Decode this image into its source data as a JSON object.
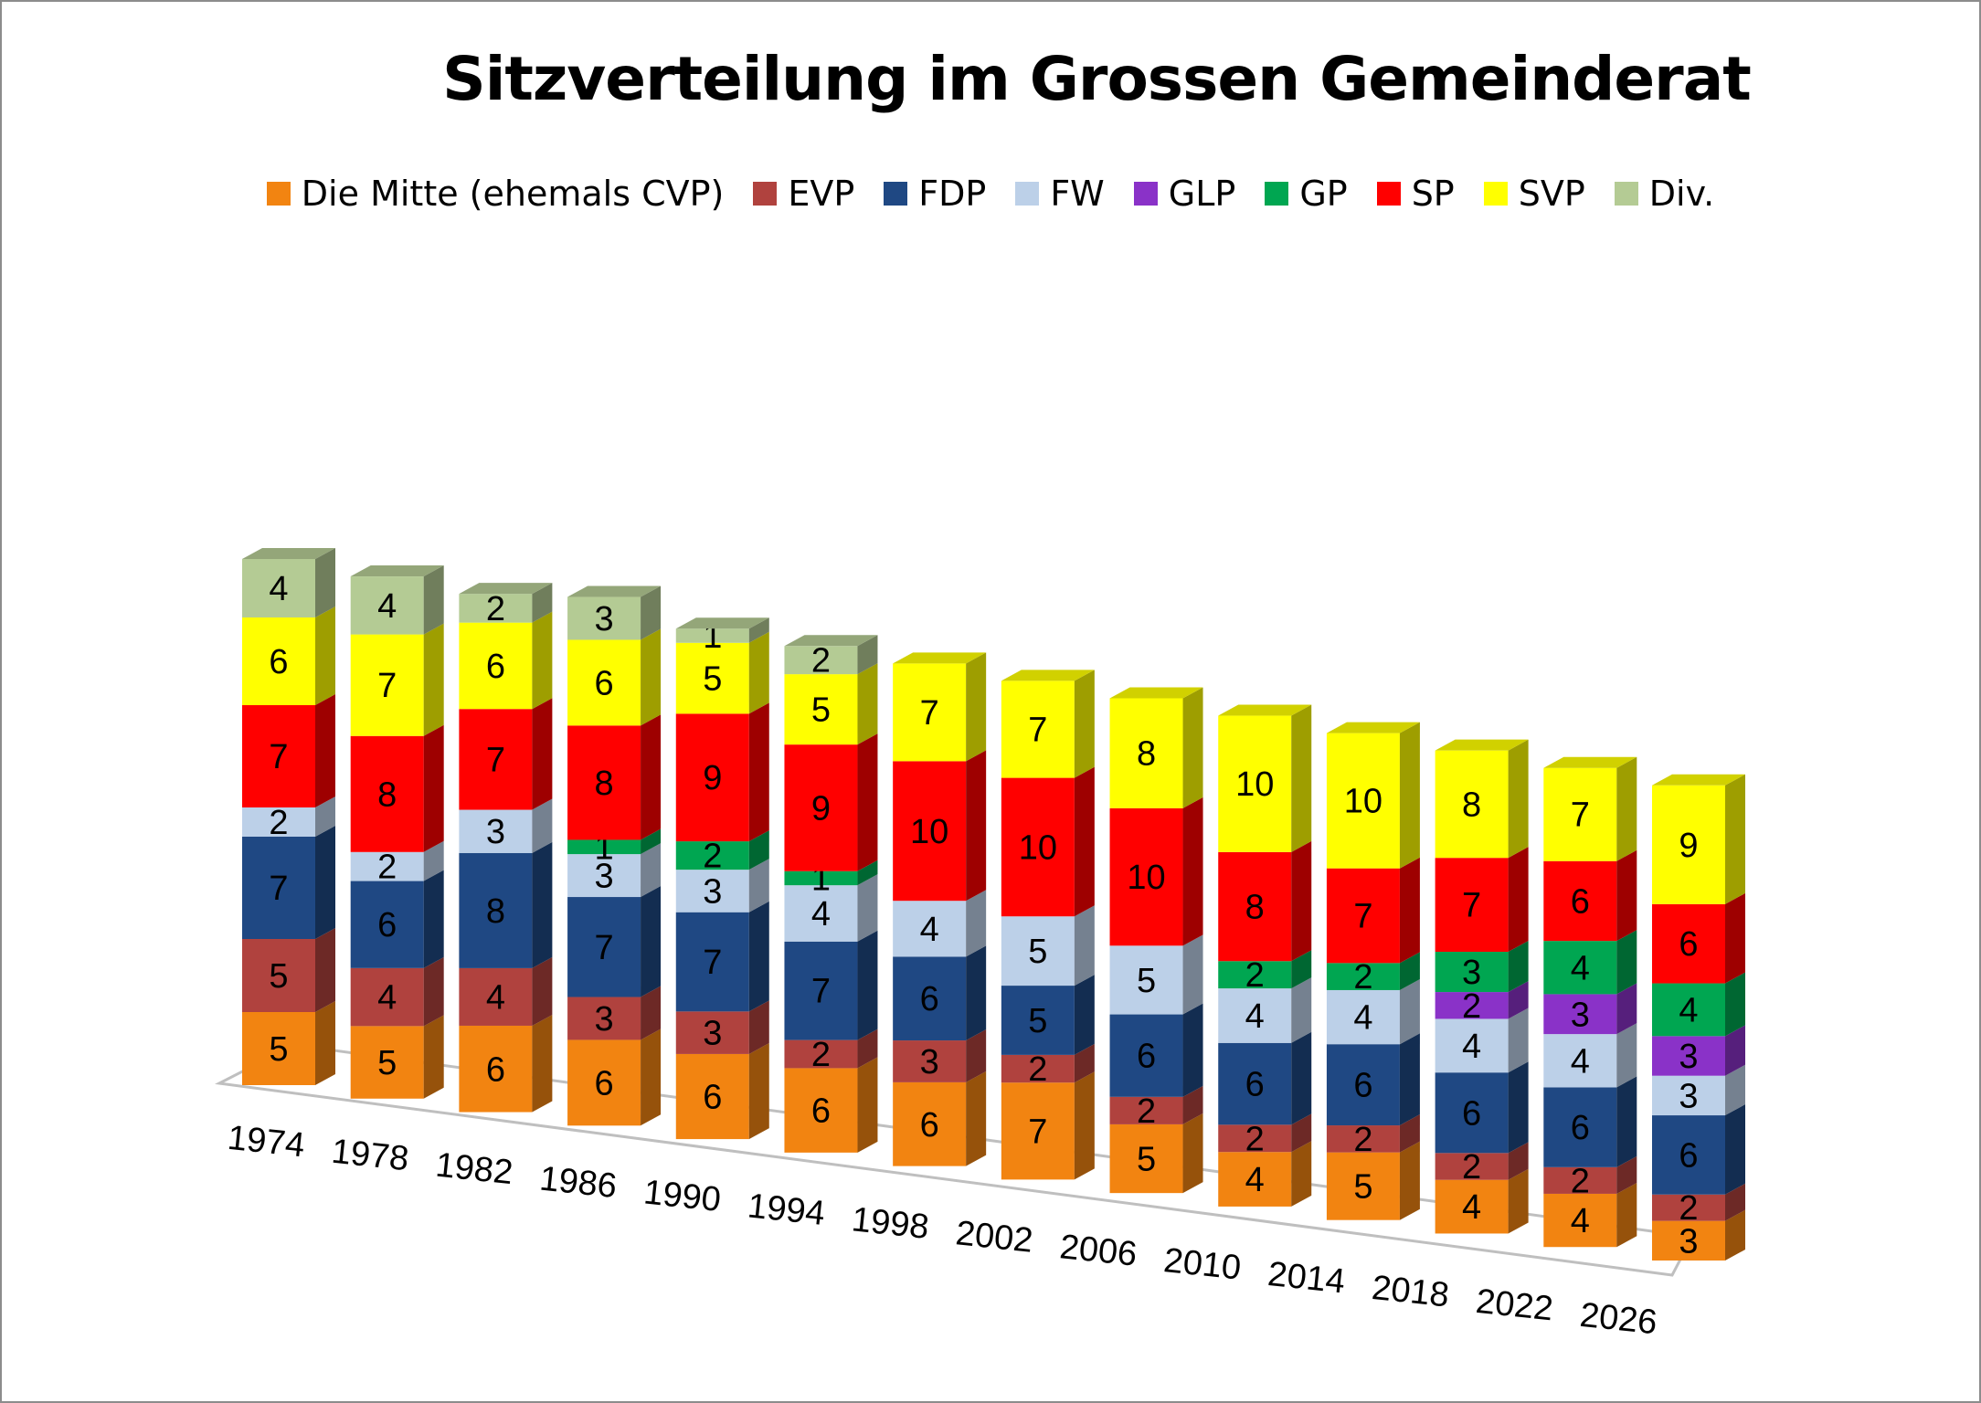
{
  "chart_data": {
    "type": "bar",
    "stacked": true,
    "three_d": true,
    "title": "Sitzverteilung im Grossen Gemeinderat",
    "legend_position": "top",
    "categories": [
      "1974",
      "1978",
      "1982",
      "1986",
      "1990",
      "1994",
      "1998",
      "2002",
      "2006",
      "2010",
      "2014",
      "2018",
      "2022",
      "2026"
    ],
    "series": [
      {
        "name": "Die Mitte (ehemals CVP)",
        "color": "#F28411",
        "values": [
          5,
          5,
          6,
          6,
          6,
          6,
          6,
          7,
          5,
          4,
          5,
          4,
          4,
          3
        ]
      },
      {
        "name": "EVP",
        "color": "#B0423E",
        "values": [
          5,
          4,
          4,
          3,
          3,
          2,
          3,
          2,
          2,
          2,
          2,
          2,
          2,
          2
        ]
      },
      {
        "name": "FDP",
        "color": "#1F4883",
        "values": [
          7,
          6,
          8,
          7,
          7,
          7,
          6,
          5,
          6,
          6,
          6,
          6,
          6,
          6
        ]
      },
      {
        "name": "FW",
        "color": "#BCD0E8",
        "values": [
          2,
          2,
          3,
          3,
          3,
          4,
          4,
          5,
          5,
          4,
          4,
          4,
          4,
          3
        ]
      },
      {
        "name": "GLP",
        "color": "#8A32C8",
        "values": [
          0,
          0,
          0,
          0,
          0,
          0,
          0,
          0,
          0,
          0,
          0,
          2,
          3,
          3
        ]
      },
      {
        "name": "GP",
        "color": "#00A651",
        "values": [
          0,
          0,
          0,
          1,
          2,
          1,
          0,
          0,
          0,
          2,
          2,
          3,
          4,
          4
        ]
      },
      {
        "name": "SP",
        "color": "#FF0000",
        "values": [
          7,
          8,
          7,
          8,
          9,
          9,
          10,
          10,
          10,
          8,
          7,
          7,
          6,
          6
        ]
      },
      {
        "name": "SVP",
        "color": "#FFFF00",
        "values": [
          6,
          7,
          6,
          6,
          5,
          5,
          7,
          7,
          8,
          10,
          10,
          8,
          7,
          9
        ]
      },
      {
        "name": "Div.",
        "color": "#B4CB94",
        "values": [
          4,
          4,
          2,
          3,
          1,
          2,
          0,
          0,
          0,
          0,
          0,
          0,
          0,
          0
        ]
      }
    ]
  }
}
